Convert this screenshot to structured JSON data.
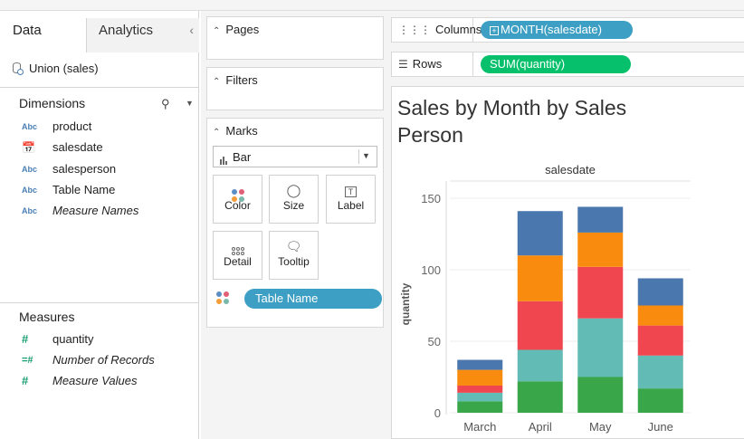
{
  "left": {
    "tabs": [
      "Data",
      "Analytics"
    ],
    "collapse": "‹",
    "datasource": "Union (sales)",
    "dimensions_title": "Dimensions",
    "dimensions": [
      {
        "type": "Abc",
        "name": "product",
        "italic": false
      },
      {
        "type": "calendar",
        "name": "salesdate",
        "italic": false
      },
      {
        "type": "Abc",
        "name": "salesperson",
        "italic": false
      },
      {
        "type": "Abc",
        "name": "Table Name",
        "italic": false
      },
      {
        "type": "Abc",
        "name": "Measure Names",
        "italic": true
      }
    ],
    "measures_title": "Measures",
    "measures": [
      {
        "type": "#",
        "name": "quantity",
        "italic": false
      },
      {
        "type": "=#",
        "name": "Number of Records",
        "italic": true
      },
      {
        "type": "#",
        "name": "Measure Values",
        "italic": true
      }
    ]
  },
  "middle": {
    "pages": "Pages",
    "filters": "Filters",
    "marks": "Marks",
    "mark_type": "Bar",
    "buttons": [
      "Color",
      "Size",
      "Label",
      "Detail",
      "Tooltip"
    ],
    "color_pill": "Table Name",
    "color_dots": [
      "#5b8ec4",
      "#e05f74",
      "#f39c3a",
      "#7ab9a9"
    ]
  },
  "right": {
    "columns_label": "Columns",
    "columns_pill": "MONTH(salesdate)",
    "rows_label": "Rows",
    "rows_pill": "SUM(quantity)"
  },
  "chart_data": {
    "type": "bar",
    "stacked": true,
    "title": "Sales by Month by Sales Person",
    "header": "salesdate",
    "xlabel": "",
    "ylabel": "quantity",
    "categories": [
      "March",
      "April",
      "May",
      "June"
    ],
    "yticks": [
      0,
      50,
      100,
      150
    ],
    "ylim": [
      0,
      162
    ],
    "colors": [
      "#3aa64a",
      "#62bbb4",
      "#f0464f",
      "#f98c0e",
      "#4a77ae"
    ],
    "series": [
      {
        "values": [
          8,
          22,
          25,
          17
        ]
      },
      {
        "values": [
          6,
          22,
          41,
          23
        ]
      },
      {
        "values": [
          5,
          34,
          36,
          21
        ]
      },
      {
        "values": [
          11,
          32,
          24,
          14
        ]
      },
      {
        "values": [
          7,
          31,
          18,
          19
        ]
      }
    ]
  }
}
